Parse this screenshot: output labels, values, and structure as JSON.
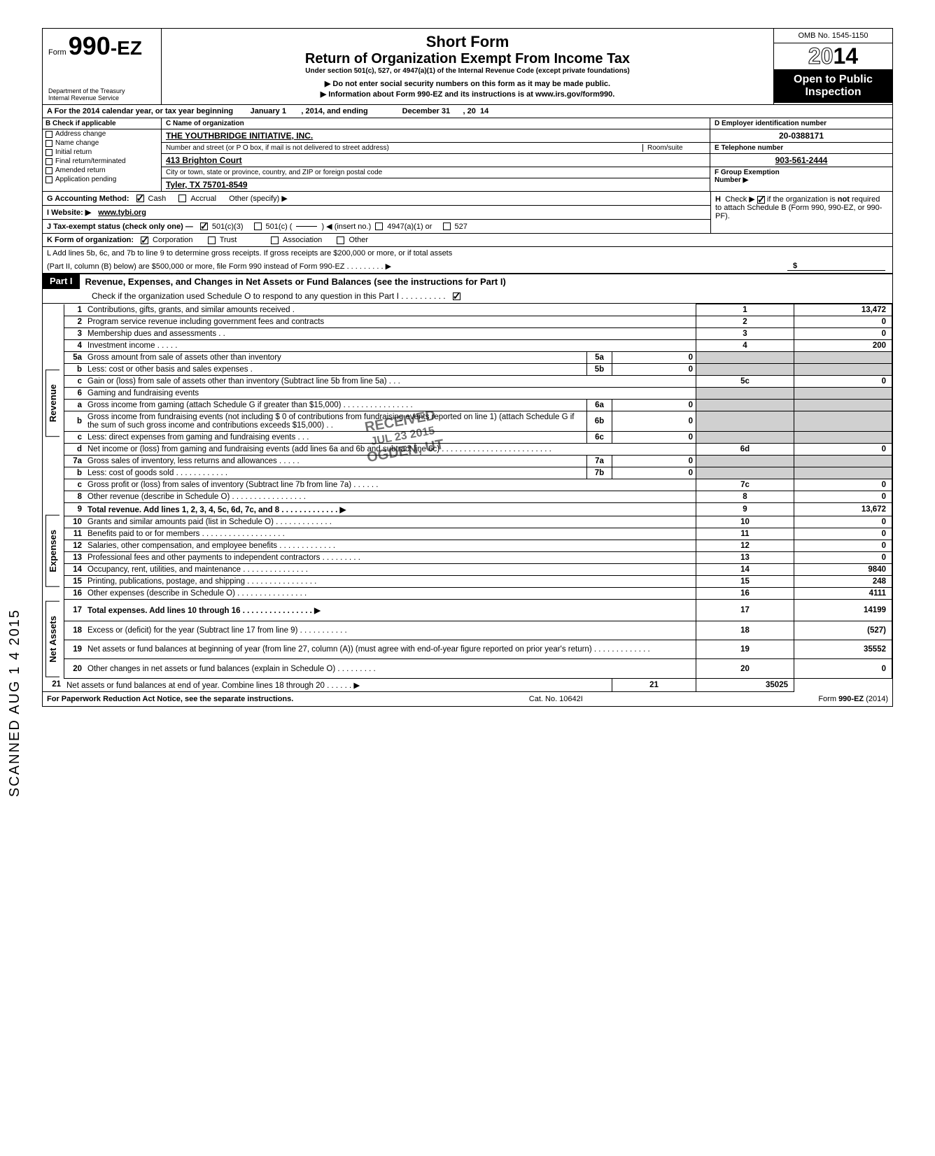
{
  "header": {
    "form_prefix": "Form",
    "form_num": "990",
    "form_suffix": "-EZ",
    "dept1": "Department of the Treasury",
    "dept2": "Internal Revenue Service",
    "short": "Short Form",
    "return": "Return of Organization Exempt From Income Tax",
    "under": "Under section 501(c), 527, or 4947(a)(1) of the Internal Revenue Code (except private foundations)",
    "sub1": "▶ Do not enter social security numbers on this form as it may be made public.",
    "sub2": "▶ Information about Form 990-EZ and its instructions is at www.irs.gov/form990.",
    "omb": "OMB No. 1545-1150",
    "year_outline": "20",
    "year_solid": "14",
    "public1": "Open to Public",
    "public2": "Inspection"
  },
  "row_a": {
    "prefix": "A  For the 2014 calendar year, or tax year beginning",
    "begin": "January 1",
    "mid": ", 2014, and ending",
    "end": "December 31",
    "suffix": ", 20",
    "yr": "14"
  },
  "col_b": {
    "header": "B  Check if applicable",
    "items": [
      "Address change",
      "Name change",
      "Initial return",
      "Final return/terminated",
      "Amended return",
      "Application pending"
    ]
  },
  "col_c": {
    "name_lbl": "C  Name of organization",
    "name": "THE YOUTHBRIDGE INITIATIVE, INC.",
    "street_lbl": "Number and street (or P O  box, if mail is not delivered to street address)",
    "room_lbl": "Room/suite",
    "street": "413 Brighton Court",
    "city_lbl": "City or town, state or province, country, and ZIP or foreign postal code",
    "city": "Tyler, TX 75701-8549"
  },
  "col_d": {
    "ein_lbl": "D Employer identification number",
    "ein": "20-0388171",
    "tel_lbl": "E  Telephone number",
    "tel": "903-561-2444",
    "grp_lbl": "F  Group Exemption",
    "grp2": "Number  ▶"
  },
  "lines_ghijkl": {
    "g": "G  Accounting Method:",
    "g_cash": "Cash",
    "g_accrual": "Accrual",
    "g_other": "Other (specify) ▶",
    "h": "H  Check ▶       if the organization is not required to attach Schedule B (Form 990, 990-EZ, or 990-PF).",
    "i": "I   Website: ▶",
    "i_val": "www.tybi.org",
    "j": "J  Tax-exempt status (check only one) —",
    "j_1": "501(c)(3)",
    "j_2": "501(c) (",
    "j_3": ")  ◀ (insert no.)",
    "j_4": "4947(a)(1) or",
    "j_5": "527",
    "k": "K  Form of organization:",
    "k_1": "Corporation",
    "k_2": "Trust",
    "k_3": "Association",
    "k_4": "Other",
    "l1": "L  Add lines 5b, 6c, and 7b to line 9 to determine gross receipts. If gross receipts are $200,000 or more, or if total assets",
    "l2": "(Part II, column (B) below) are $500,000 or more, file Form 990 instead of Form 990-EZ  .    .    .    .    .    .    .    .    .   ▶",
    "l_amt": "$"
  },
  "part1": {
    "tab": "Part I",
    "title": "Revenue, Expenses, and Changes in Net Assets or Fund Balances (see the instructions for Part I)",
    "sub": "Check if the organization used Schedule O to respond to any question in this Part I  .    .    .    .    .    .    .    .    .    ."
  },
  "side_labels": {
    "rev": "Revenue",
    "exp": "Expenses",
    "net": "Net Assets"
  },
  "rows": [
    {
      "n": "1",
      "desc": "Contributions, gifts, grants, and similar amounts received .",
      "box": "1",
      "val": "13,472"
    },
    {
      "n": "2",
      "desc": "Program service revenue including government fees and contracts",
      "box": "2",
      "val": "0"
    },
    {
      "n": "3",
      "desc": "Membership dues and assessments  .    .",
      "box": "3",
      "val": "0"
    },
    {
      "n": "4",
      "desc": "Investment income     .    .    .    .    .",
      "box": "4",
      "val": "200"
    },
    {
      "n": "5a",
      "desc": "Gross amount from sale of assets other than inventory",
      "mid": "5a",
      "midval": "0"
    },
    {
      "n": "b",
      "desc": "Less: cost or other basis and sales expenses  .",
      "mid": "5b",
      "midval": "0"
    },
    {
      "n": "c",
      "desc": "Gain or (loss) from sale of assets other than inventory (Subtract line 5b from line 5a)  .    .    .",
      "box": "5c",
      "val": "0"
    },
    {
      "n": "6",
      "desc": "Gaming and fundraising events"
    },
    {
      "n": "a",
      "desc": "Gross income from gaming (attach Schedule G if greater than $15,000)  .    .    .    .    .    .    .    .    .    .    .    .    .    .    .    .",
      "mid": "6a",
      "midval": "0"
    },
    {
      "n": "b",
      "desc": "Gross income from fundraising events (not including  $                       0 of contributions from fundraising events reported on line 1) (attach Schedule G if the sum of such gross income and contributions exceeds $15,000)  .    .",
      "mid": "6b",
      "midval": "0"
    },
    {
      "n": "c",
      "desc": "Less: direct expenses from gaming and fundraising events     .    .    .",
      "mid": "6c",
      "midval": "0"
    },
    {
      "n": "d",
      "desc": "Net income or (loss) from gaming and fundraising events (add lines 6a and 6b and subtract line 6c)       .    .    .    .    .    .    .    .    .    .    .    .    .    .    .    .    .    .    .    .    .    .    .    .    .",
      "box": "6d",
      "val": "0"
    },
    {
      "n": "7a",
      "desc": "Gross sales of inventory, less returns and allowances   .    .    .    .    .",
      "mid": "7a",
      "midval": "0"
    },
    {
      "n": "b",
      "desc": "Less: cost of goods sold         .    .    .    .    .    .    .    .    .    .    .    .",
      "mid": "7b",
      "midval": "0"
    },
    {
      "n": "c",
      "desc": "Gross profit or (loss) from sales of inventory (Subtract line 7b from line 7a)   .    .    .    .    .    .",
      "box": "7c",
      "val": "0"
    },
    {
      "n": "8",
      "desc": "Other revenue (describe in Schedule O) .    .    .    .    .    .    .    .    .    .    .    .    .    .    .    .    .",
      "box": "8",
      "val": "0"
    },
    {
      "n": "9",
      "desc": "Total revenue. Add lines 1, 2, 3, 4, 5c, 6d, 7c, and 8   .    .    .    .    .    .    .    .    .    .    .    .    .  ▶",
      "box": "9",
      "val": "13,672",
      "bold": true
    },
    {
      "n": "10",
      "desc": "Grants and similar amounts paid (list in Schedule O)    .    .    .    .    .    .    .    .    .    .    .    .    .",
      "box": "10",
      "val": "0"
    },
    {
      "n": "11",
      "desc": "Benefits paid to or for members    .    .    .    .    .    .    .    .    .    .    .    .    .    .    .    .    .    .    .",
      "box": "11",
      "val": "0"
    },
    {
      "n": "12",
      "desc": "Salaries, other compensation, and employee benefits  .    .    .    .    .    .    .    .    .    .    .    .    .",
      "box": "12",
      "val": "0"
    },
    {
      "n": "13",
      "desc": "Professional fees and other payments to independent contractors  .    .    .    .    .    .    .    .    .",
      "box": "13",
      "val": "0"
    },
    {
      "n": "14",
      "desc": "Occupancy, rent, utilities, and maintenance     .    .    .    .    .    .    .    .    .    .    .    .    .    .    .",
      "box": "14",
      "val": "9840"
    },
    {
      "n": "15",
      "desc": "Printing, publications, postage, and shipping .    .    .    .    .    .    .    .    .    .    .    .    .    .    .    .",
      "box": "15",
      "val": "248"
    },
    {
      "n": "16",
      "desc": "Other expenses (describe in Schedule O)   .    .    .    .    .    .    .    .    .    .    .    .    .    .    .    .",
      "box": "16",
      "val": "4111"
    },
    {
      "n": "17",
      "desc": "Total expenses. Add lines 10 through 16  .    .    .    .    .    .    .    .    .    .    .    .    .    .    .    . ▶",
      "box": "17",
      "val": "14199",
      "bold": true
    },
    {
      "n": "18",
      "desc": "Excess or (deficit) for the year (Subtract line 17 from line 9)    .    .    .    .    .    .    .    .    .    .    .",
      "box": "18",
      "val": "(527)"
    },
    {
      "n": "19",
      "desc": "Net assets or fund balances at beginning of year (from line 27, column (A)) (must agree with end-of-year figure reported on prior year's return)      .    .    .    .    .    .    .    .    .    .    .    .    .",
      "box": "19",
      "val": "35552"
    },
    {
      "n": "20",
      "desc": "Other changes in net assets or fund balances (explain in Schedule O) .    .    .    .    .    .    .    .    .",
      "box": "20",
      "val": "0"
    },
    {
      "n": "21",
      "desc": "Net assets or fund balances at end of year. Combine lines 18 through 20    .    .    .    .    .    .   ▶",
      "box": "21",
      "val": "35025"
    }
  ],
  "footer": {
    "left": "For Paperwork Reduction Act Notice, see the separate instructions.",
    "mid": "Cat. No. 10642I",
    "right": "Form 990-EZ  (2014)"
  },
  "stamp": {
    "line1": "RECEIVED",
    "line2": "JUL 23 2015",
    "line3": "OGDEN, UT"
  },
  "vertical": "SCANNED AUG 1 4 2015"
}
